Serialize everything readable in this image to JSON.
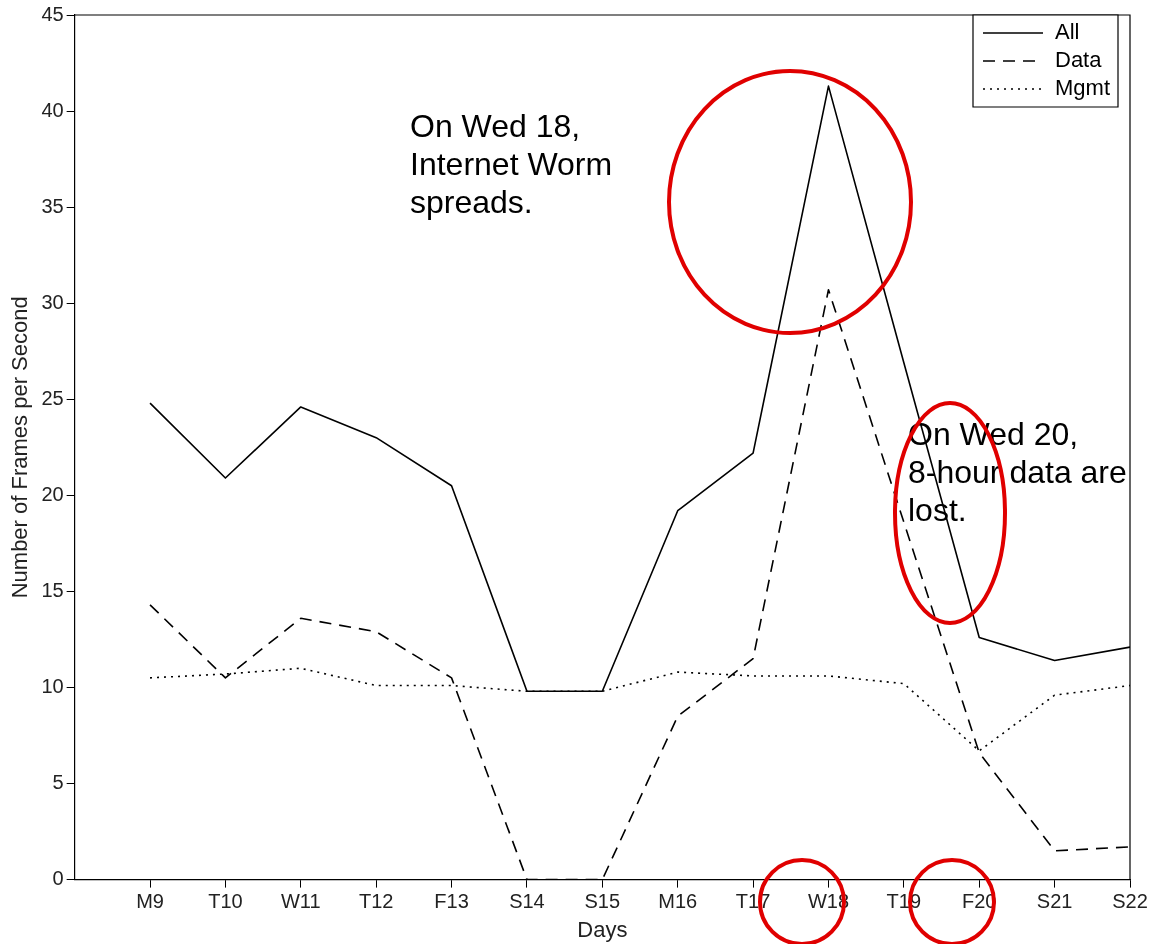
{
  "chart_data": {
    "type": "line",
    "xlabel": "Days",
    "ylabel": "Number of Frames per Second",
    "categories": [
      "M9",
      "T10",
      "W11",
      "T12",
      "F13",
      "S14",
      "S15",
      "M16",
      "T17",
      "W18",
      "T19",
      "F20",
      "S21",
      "S22"
    ],
    "series": [
      {
        "name": "All",
        "color": "#000000",
        "line_style": "solid",
        "values": [
          24.8,
          20.9,
          24.6,
          23.0,
          20.5,
          9.8,
          9.8,
          19.2,
          22.2,
          41.3,
          26.9,
          12.6,
          11.4,
          12.1
        ]
      },
      {
        "name": "Data",
        "color": "#000000",
        "line_style": "dashed",
        "values": [
          14.3,
          10.5,
          13.6,
          12.9,
          10.5,
          0,
          0,
          8.5,
          11.5,
          30.7,
          18.6,
          6.6,
          1.5,
          1.7
        ]
      },
      {
        "name": "Mgmt",
        "color": "#000000",
        "line_style": "dotted",
        "values": [
          10.5,
          10.7,
          11.0,
          10.1,
          10.1,
          9.8,
          9.8,
          10.8,
          10.6,
          10.6,
          10.2,
          6.7,
          9.6,
          10.1
        ]
      }
    ],
    "ylim": [
      0,
      45
    ],
    "yticks": [
      0,
      5,
      10,
      15,
      20,
      25,
      30,
      35,
      40,
      45
    ],
    "grid": false,
    "legend": "top right",
    "marker": "none",
    "annotations": [
      "On Wed 18, Internet Worm spreads.",
      "On Wed 20, 8-hour data are lost."
    ]
  }
}
